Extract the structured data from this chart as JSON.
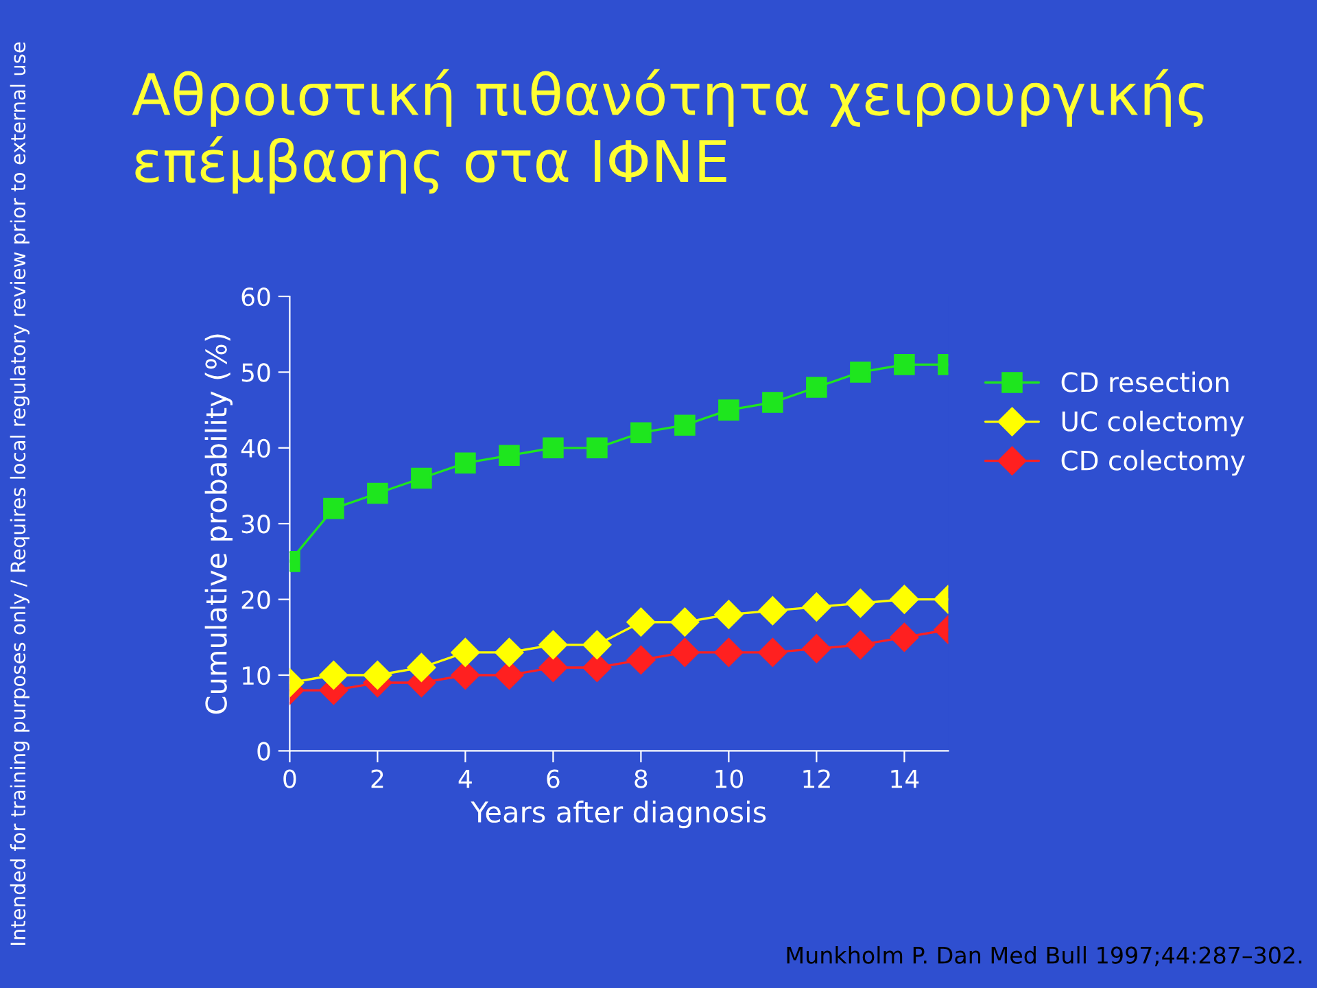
{
  "chart_data": {
    "type": "line",
    "title": "Αθροιστική πιθανότητα χειρουργικής επέμβασης στα ΙΦΝΕ",
    "xlabel": "Years after diagnosis",
    "ylabel": "Cumulative probability (%)",
    "x": [
      0,
      1,
      2,
      3,
      4,
      5,
      6,
      7,
      8,
      9,
      10,
      11,
      12,
      13,
      14,
      15
    ],
    "series": [
      {
        "name": "CD resection",
        "color": "#1ee61e",
        "marker": "square",
        "values": [
          25,
          32,
          34,
          36,
          38,
          39,
          40,
          40,
          42,
          43,
          45,
          46,
          48,
          50,
          51,
          51
        ]
      },
      {
        "name": "UC colectomy",
        "color": "#ffff00",
        "marker": "diamond",
        "values": [
          9,
          10,
          10,
          11,
          13,
          13,
          14,
          14,
          17,
          17,
          18,
          18.5,
          19,
          19.5,
          20,
          20
        ]
      },
      {
        "name": "CD colectomy",
        "color": "#ff2020",
        "marker": "diamond",
        "values": [
          8,
          8,
          9,
          9,
          10,
          10,
          11,
          11,
          12,
          13,
          13,
          13,
          13.5,
          14,
          15,
          16
        ]
      }
    ],
    "xlim": [
      0,
      15
    ],
    "xticks": [
      0,
      2,
      4,
      6,
      8,
      10,
      12,
      14
    ],
    "ylim": [
      0,
      60
    ],
    "yticks": [
      0,
      10,
      20,
      30,
      40,
      50,
      60
    ],
    "grid": false,
    "legend": "right",
    "line_style": "solid",
    "annotations": [
      "Intended for training purposes only / Requires local regulatory review prior to external use",
      "Munkholm P. Dan Med Bull 1997;44:287–302."
    ]
  }
}
